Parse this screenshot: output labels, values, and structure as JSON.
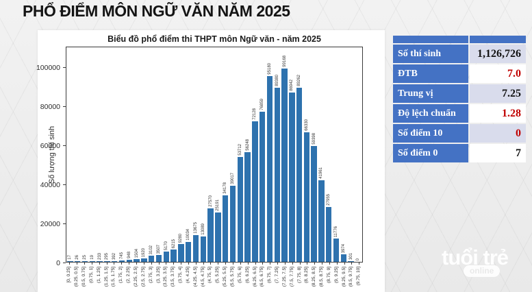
{
  "page": {
    "title": "PHỔ ĐIỂM MÔN NGỮ VĂN NĂM 2025",
    "watermark": {
      "brand": "tuổi trẻ",
      "sub": "online"
    }
  },
  "chart_data": {
    "type": "bar",
    "title": "Biểu đồ phổ điểm thi THPT môn Ngữ văn - năm 2025",
    "xlabel": "",
    "ylabel": "Số lượng thí sinh",
    "ylim": [
      0,
      110000
    ],
    "yticks": [
      0,
      20000,
      40000,
      60000,
      80000,
      100000
    ],
    "grid": false,
    "legend_position": "none",
    "bar_color": "#2e72ae",
    "categories": [
      "[0, 0.25]",
      "(0.25, 0.5]",
      "(0.5, 0.75]",
      "(0.75, 1]",
      "(1, 1.25]",
      "(1.25, 1.5]",
      "(1.5, 1.75]",
      "(1.75, 2]",
      "(2, 2.25]",
      "(2.25, 2.5]",
      "(2.5, 2.75]",
      "(2.75, 3]",
      "(3, 3.25]",
      "(3.25, 3.5]",
      "(3.5, 3.75]",
      "(3.75, 4]",
      "(4, 4.25]",
      "(4.25, 4.5]",
      "(4.5, 4.75]",
      "(4.75, 5]",
      "(5, 5.25]",
      "(5.25, 5.5]",
      "(5.5, 5.75]",
      "(5.75, 6]",
      "(6, 6.25]",
      "(6.25, 6.5]",
      "(6.5, 6.75]",
      "(6.75, 7]",
      "(7, 7.25]",
      "(7.25, 7.5]",
      "(7.5, 7.75]",
      "(7.75, 8]",
      "(8, 8.25]",
      "(8.25, 8.5]",
      "(8.5, 8.75]",
      "(8.75, 9]",
      "(9, 9.25]",
      "(9.25, 9.5]",
      "(9.5, 9.75]",
      "(9.75, 10]"
    ],
    "values": [
      17,
      26,
      25,
      19,
      233,
      295,
      392,
      745,
      948,
      1504,
      1920,
      3102,
      3507,
      5170,
      6215,
      9280,
      10034,
      13675,
      13089,
      27570,
      25191,
      34178,
      39017,
      53712,
      56248,
      72128,
      76859,
      95180,
      89380,
      99168,
      86942,
      89262,
      66330,
      59398,
      41961,
      27955,
      11776,
      3974,
      301,
      0
    ]
  },
  "stats_table": {
    "header_color": "#4472c4",
    "red": "#c00000",
    "black": "#111111",
    "rows": [
      {
        "label": "Số thí sinh",
        "value": "1,126,726",
        "color": "#111111"
      },
      {
        "label": "ĐTB",
        "value": "7.0",
        "color": "#c00000"
      },
      {
        "label": "Trung vị",
        "value": "7.25",
        "color": "#111111"
      },
      {
        "label": "Độ lệch chuẩn",
        "value": "1.28",
        "color": "#c00000"
      },
      {
        "label": "Số điểm 10",
        "value": "0",
        "color": "#c00000"
      },
      {
        "label": "Số điểm 0",
        "value": "7",
        "color": "#111111"
      }
    ]
  }
}
